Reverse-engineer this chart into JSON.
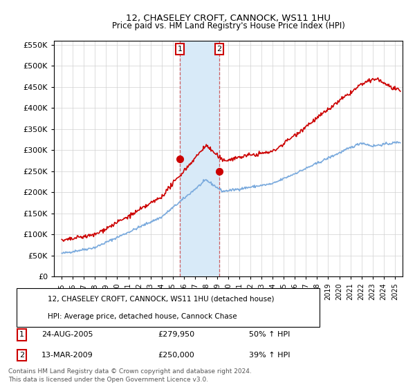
{
  "title": "12, CHASELEY CROFT, CANNOCK, WS11 1HU",
  "subtitle": "Price paid vs. HM Land Registry's House Price Index (HPI)",
  "legend_line1": "12, CHASELEY CROFT, CANNOCK, WS11 1HU (detached house)",
  "legend_line2": "HPI: Average price, detached house, Cannock Chase",
  "sale1_label": "1",
  "sale1_date": "24-AUG-2005",
  "sale1_price": "£279,950",
  "sale1_hpi": "50% ↑ HPI",
  "sale2_label": "2",
  "sale2_date": "13-MAR-2009",
  "sale2_price": "£250,000",
  "sale2_hpi": "39% ↑ HPI",
  "footnote1": "Contains HM Land Registry data © Crown copyright and database right 2024.",
  "footnote2": "This data is licensed under the Open Government Licence v3.0.",
  "sale1_year": 2005.65,
  "sale1_value": 279950,
  "sale2_year": 2009.2,
  "sale2_value": 250000,
  "hpi_color": "#7aaadd",
  "price_color": "#cc0000",
  "shade_color": "#d8eaf8",
  "ylim_max": 560000,
  "ylim_min": 0,
  "xmin": 1994.3,
  "xmax": 2025.7
}
